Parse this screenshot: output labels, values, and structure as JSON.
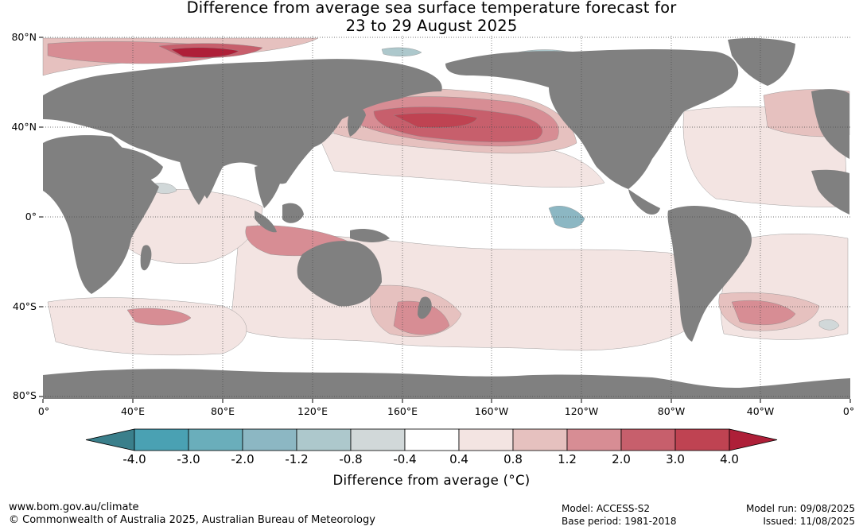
{
  "title": {
    "line1": "Difference from average sea surface temperature forecast for",
    "line2": "23 to 29 August 2025"
  },
  "axes": {
    "lat_labels": [
      "80°N",
      "40°N",
      "0°",
      "40°S",
      "80°S"
    ],
    "lon_labels": [
      "0°",
      "40°E",
      "80°E",
      "120°E",
      "160°E",
      "160°W",
      "120°W",
      "80°W",
      "40°W",
      "0°"
    ]
  },
  "colorbar": {
    "ticks": [
      "-4.0",
      "-3.0",
      "-2.0",
      "-1.2",
      "-0.8",
      "-0.4",
      "0.4",
      "0.8",
      "1.2",
      "2.0",
      "3.0",
      "4.0"
    ],
    "colors": [
      "#3a7f8b",
      "#4aa1b3",
      "#6aaebb",
      "#8cb7c3",
      "#adc8cc",
      "#d1d8d9",
      "#ffffff",
      "#f3e4e2",
      "#e6c1bf",
      "#d78d94",
      "#c75f6c",
      "#bf4352",
      "#ae1f38"
    ],
    "label": "Difference from average (°C)"
  },
  "map_colors": {
    "land": "#808080",
    "ocean_neutral": "#ffffff",
    "warm_1": "#f3e4e2",
    "warm_2": "#e6c1bf",
    "warm_3": "#d78d94",
    "warm_4": "#c75f6c",
    "warm_5": "#bf4352",
    "warm_6": "#ae1f38",
    "cool_1": "#d1d8d9",
    "cool_2": "#adc8cc",
    "cool_3": "#8cb7c3"
  },
  "footer": {
    "website": "www.bom.gov.au/climate",
    "copyright": "© Commonwealth of Australia 2025, Australian Bureau of Meteorology",
    "model": "Model: ACCESS-S2",
    "base_period": "Base period: 1981-2018",
    "model_run": "Model run: 09/08/2025",
    "issued": "Issued: 11/08/2025"
  }
}
